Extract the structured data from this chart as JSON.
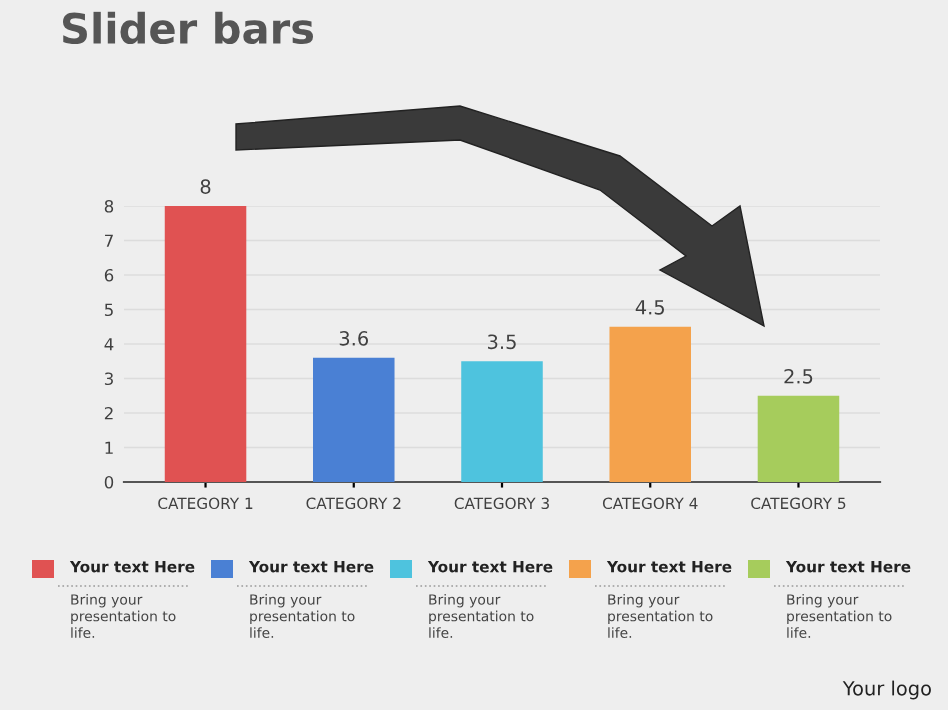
{
  "chart_data": {
    "type": "bar",
    "title": "Slider bars",
    "categories": [
      "CATEGORY 1",
      "CATEGORY 2",
      "CATEGORY 3",
      "CATEGORY 4",
      "CATEGORY 5"
    ],
    "values": [
      8,
      3.6,
      3.5,
      4.5,
      2.5
    ],
    "colors": [
      "#e05252",
      "#4a80d4",
      "#4ec3de",
      "#f4a24c",
      "#a6cc5c"
    ],
    "ylim": [
      0,
      8
    ],
    "yticks": [
      0,
      1,
      2,
      3,
      4,
      5,
      6,
      7,
      8
    ],
    "grid": "y",
    "data_labels": true,
    "annotations": [
      "Your text Here",
      "Your text Here",
      "Your text Here",
      "Your text Here",
      "Your text Here",
      "Bring your\npresentation to\nlife.",
      "Bring your\npresentation to\nlife.",
      "Bring your\npresentation to\nlife.",
      "Bring your\npresentation to\nlife.",
      "Bring your\npresentation to\nlife.",
      "Your logo"
    ]
  }
}
